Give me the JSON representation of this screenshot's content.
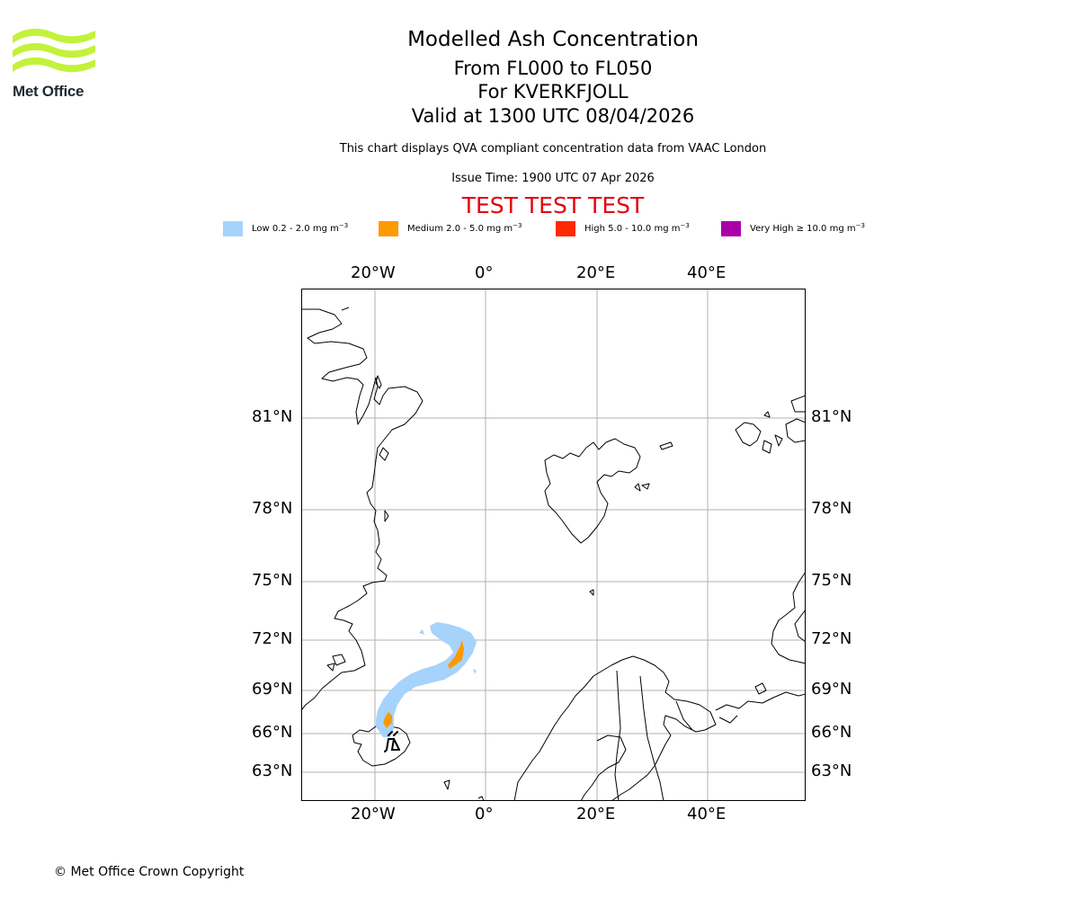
{
  "logo": {
    "name": "Met Office"
  },
  "header": {
    "title": "Modelled Ash Concentration",
    "levels": "From FL000 to FL050",
    "volcano": "For KVERKFJOLL",
    "valid": "Valid at 1300 UTC 08/04/2026",
    "description": "This chart displays QVA compliant concentration data from VAAC London",
    "issue_time": "Issue Time: 1900 UTC 07 Apr 2026",
    "test_banner": "TEST TEST TEST"
  },
  "legend": [
    {
      "label": "Low 0.2 - 2.0 mg m",
      "unit_exp": "−3",
      "color": "#a6d3fb"
    },
    {
      "label": "Medium 2.0 - 5.0 mg m",
      "unit_exp": "−3",
      "color": "#ff9900"
    },
    {
      "label": "High 5.0 - 10.0 mg m",
      "unit_exp": "−3",
      "color": "#ff2a00"
    },
    {
      "label": "Very High  ≥  10.0 mg m",
      "unit_exp": "−3",
      "color": "#a900a9"
    }
  ],
  "map": {
    "lon_labels": [
      "20°W",
      "0°",
      "20°E",
      "40°E"
    ],
    "lat_labels": [
      "81°N",
      "78°N",
      "75°N",
      "72°N",
      "69°N",
      "66°N",
      "63°N"
    ],
    "volcano_symbol": "volcano-icon",
    "ash_low_color": "#a6d3fb",
    "ash_medium_color": "#ff9900",
    "grid_color": "#b0b0b0"
  },
  "footer": {
    "copyright": "© Met Office Crown Copyright"
  }
}
